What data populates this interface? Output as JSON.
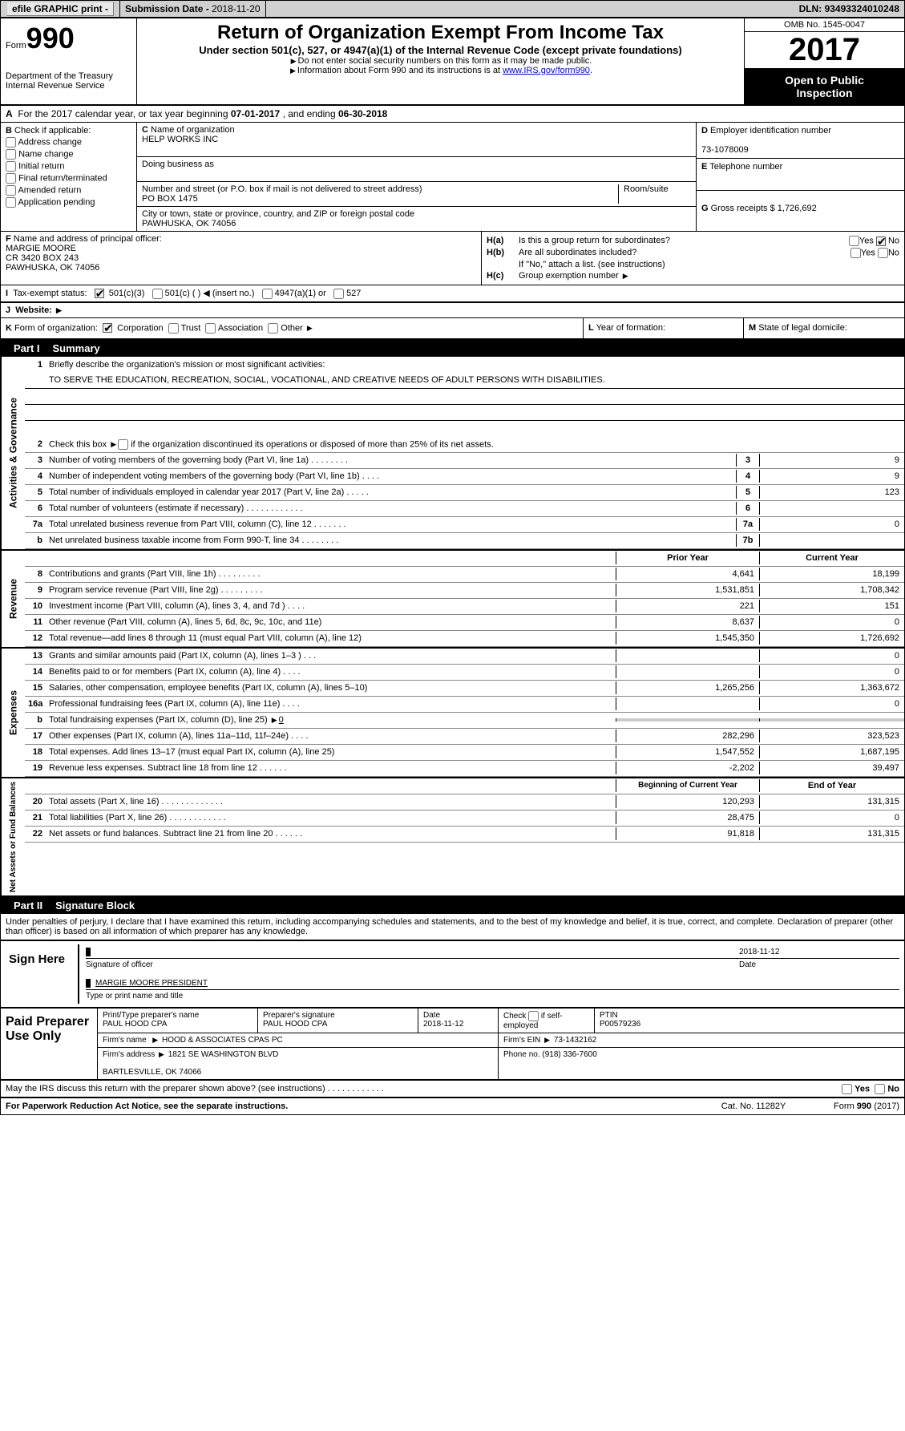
{
  "topbar": {
    "efile": "efile GRAPHIC print -",
    "submission_label": "Submission Date - ",
    "submission_date": "2018-11-20",
    "dln_label": "DLN: ",
    "dln": "93493324010248"
  },
  "header": {
    "form_label": "Form",
    "form_number": "990",
    "dept1": "Department of the Treasury",
    "dept2": "Internal Revenue Service",
    "title": "Return of Organization Exempt From Income Tax",
    "subtitle": "Under section 501(c), 527, or 4947(a)(1) of the Internal Revenue Code (except private foundations)",
    "note1": "Do not enter social security numbers on this form as it may be made public.",
    "note2_a": "Information about Form 990 and its instructions is at ",
    "note2_link": "www.IRS.gov/form990",
    "omb": "OMB No. 1545-0047",
    "year": "2017",
    "open1": "Open to Public",
    "open2": "Inspection"
  },
  "rowA": {
    "label_a": "A",
    "text": "For the 2017 calendar year, or tax year beginning ",
    "begin": "07-01-2017",
    "mid": " , and ending ",
    "end": "06-30-2018"
  },
  "boxB": {
    "label": "B",
    "check_label": "Check if applicable:",
    "items": [
      "Address change",
      "Name change",
      "Initial return",
      "Final return/terminated",
      "Amended return",
      "Application pending"
    ]
  },
  "boxC": {
    "label": "C",
    "name_label": "Name of organization",
    "name": "HELP WORKS INC",
    "dba_label": "Doing business as",
    "dba": "",
    "street_label": "Number and street (or P.O. box if mail is not delivered to street address)",
    "room_label": "Room/suite",
    "street": "PO BOX 1475",
    "city_label": "City or town, state or province, country, and ZIP or foreign postal code",
    "city": "PAWHUSKA, OK  74056"
  },
  "boxD": {
    "label": "D",
    "ein_label": "Employer identification number",
    "ein": "73-1078009",
    "e_label": "E",
    "tel_label": "Telephone number",
    "tel": "",
    "g_label": "G",
    "gross_label": "Gross receipts $ ",
    "gross": "1,726,692"
  },
  "boxF": {
    "label": "F",
    "officer_label": "Name and address of principal officer:",
    "name": "MARGIE MOORE",
    "addr1": "CR 3420 BOX 243",
    "addr2": "PAWHUSKA, OK  74056"
  },
  "boxH": {
    "ha_label": "H(a)",
    "ha_text": "Is this a group return for subordinates?",
    "ha_yes": "Yes",
    "ha_no": "No",
    "hb_label": "H(b)",
    "hb_text": "Are all subordinates included?",
    "hb_yes": "Yes",
    "hb_no": "No",
    "hb_note": "If \"No,\" attach a list. (see instructions)",
    "hc_label": "H(c)",
    "hc_text": "Group exemption number"
  },
  "rowI": {
    "label": "I",
    "text": "Tax-exempt status:",
    "o1": "501(c)(3)",
    "o2": "501(c) (  )",
    "o2b": "(insert no.)",
    "o3": "4947(a)(1) or",
    "o4": "527"
  },
  "rowJ": {
    "label": "J",
    "text": "Website:"
  },
  "rowK": {
    "label": "K",
    "text": "Form of organization:",
    "o1": "Corporation",
    "o2": "Trust",
    "o3": "Association",
    "o4": "Other"
  },
  "rowL": {
    "label": "L",
    "text": "Year of formation:"
  },
  "rowM": {
    "label": "M",
    "text": "State of legal domicile:"
  },
  "part1": {
    "header": "Part I",
    "title": "Summary",
    "vtabs": [
      "Activities & Governance",
      "Revenue",
      "Expenses",
      "Net Assets or Fund Balances"
    ],
    "line1_num": "1",
    "line1_text": "Briefly describe the organization's mission or most significant activities:",
    "line1_val": "TO SERVE THE EDUCATION, RECREATION, SOCIAL, VOCATIONAL, AND CREATIVE NEEDS OF ADULT PERSONS WITH DISABILITIES.",
    "line2_num": "2",
    "line2_text": "Check this box",
    "line2_text2": " if the organization discontinued its operations or disposed of more than 25% of its net assets.",
    "lines_ag": [
      {
        "n": "3",
        "t": "Number of voting members of the governing body (Part VI, line 1a)  .    .    .    .    .    .    .    .",
        "c": "3",
        "v": "9"
      },
      {
        "n": "4",
        "t": "Number of independent voting members of the governing body (Part VI, line 1b)    .   .    .    .",
        "c": "4",
        "v": "9"
      },
      {
        "n": "5",
        "t": "Total number of individuals employed in calendar year 2017 (Part V, line 2a)    .    .    .    .    .",
        "c": "5",
        "v": "123"
      },
      {
        "n": "6",
        "t": "Total number of volunteers (estimate if necessary)   .    .    .    .    .    .    .    .    .    .    .    .",
        "c": "6",
        "v": ""
      },
      {
        "n": "7a",
        "t": "Total unrelated business revenue from Part VIII, column (C), line 12    .    .    .    .    .    .    .",
        "c": "7a",
        "v": "0"
      },
      {
        "n": "b",
        "t": "Net unrelated business taxable income from Form 990-T, line 34   .    .    .    .    .    .    .    .",
        "c": "7b",
        "v": ""
      }
    ],
    "col_hdr_prior": "Prior Year",
    "col_hdr_current": "Current Year",
    "lines_rev": [
      {
        "n": "8",
        "t": "Contributions and grants (Part VIII, line 1h)   .    .    .    .    .    .    .    .    .",
        "a": "4,641",
        "b": "18,199"
      },
      {
        "n": "9",
        "t": "Program service revenue (Part VIII, line 2g)   .    .    .    .    .    .    .    .    .",
        "a": "1,531,851",
        "b": "1,708,342"
      },
      {
        "n": "10",
        "t": "Investment income (Part VIII, column (A), lines 3, 4, and 7d )    .    .    .    .",
        "a": "221",
        "b": "151"
      },
      {
        "n": "11",
        "t": "Other revenue (Part VIII, column (A), lines 5, 6d, 8c, 9c, 10c, and 11e)",
        "a": "8,637",
        "b": "0"
      },
      {
        "n": "12",
        "t": "Total revenue—add lines 8 through 11 (must equal Part VIII, column (A), line 12)",
        "a": "1,545,350",
        "b": "1,726,692"
      }
    ],
    "lines_exp": [
      {
        "n": "13",
        "t": "Grants and similar amounts paid (Part IX, column (A), lines 1–3 )   .    .    .",
        "a": "",
        "b": "0"
      },
      {
        "n": "14",
        "t": "Benefits paid to or for members (Part IX, column (A), line 4)   .    .    .    .",
        "a": "",
        "b": "0"
      },
      {
        "n": "15",
        "t": "Salaries, other compensation, employee benefits (Part IX, column (A), lines 5–10)",
        "a": "1,265,256",
        "b": "1,363,672"
      },
      {
        "n": "16a",
        "t": "Professional fundraising fees (Part IX, column (A), line 11e)    .    .    .    .",
        "a": "",
        "b": "0"
      },
      {
        "n": "b",
        "t": "Total fundraising expenses (Part IX, column (D), line 25)",
        "bval": "0",
        "gray": true
      },
      {
        "n": "17",
        "t": "Other expenses (Part IX, column (A), lines 11a–11d, 11f–24e)    .    .    .    .",
        "a": "282,296",
        "b": "323,523"
      },
      {
        "n": "18",
        "t": "Total expenses. Add lines 13–17 (must equal Part IX, column (A), line 25)",
        "a": "1,547,552",
        "b": "1,687,195"
      },
      {
        "n": "19",
        "t": "Revenue less expenses. Subtract line 18 from line 12   .    .    .    .    .    .",
        "a": "-2,202",
        "b": "39,497"
      }
    ],
    "col_hdr_begin": "Beginning of Current Year",
    "col_hdr_end": "End of Year",
    "lines_na": [
      {
        "n": "20",
        "t": "Total assets (Part X, line 16)   .    .    .    .    .    .    .    .    .    .    .    .    .",
        "a": "120,293",
        "b": "131,315"
      },
      {
        "n": "21",
        "t": "Total liabilities (Part X, line 26)    .    .    .    .    .    .    .    .    .    .    .    .",
        "a": "28,475",
        "b": "0"
      },
      {
        "n": "22",
        "t": "Net assets or fund balances. Subtract line 21 from line 20 .    .    .    .    .    .",
        "a": "91,818",
        "b": "131,315"
      }
    ]
  },
  "part2": {
    "header": "Part II",
    "title": "Signature Block",
    "perjury": "Under penalties of perjury, I declare that I have examined this return, including accompanying schedules and statements, and to the best of my knowledge and belief, it is true, correct, and complete. Declaration of preparer (other than officer) is based on all information of which preparer has any knowledge.",
    "sign_here": "Sign Here",
    "sig_date": "2018-11-12",
    "sig_label": "Signature of officer",
    "date_label": "Date",
    "name_title": "MARGIE MOORE PRESIDENT",
    "name_label": "Type or print name and title",
    "paid": "Paid Preparer Use Only",
    "prep_name_label": "Print/Type preparer's name",
    "prep_name": "PAUL HOOD CPA",
    "prep_sig_label": "Preparer's signature",
    "prep_sig": "PAUL HOOD CPA",
    "prep_date_label": "Date",
    "prep_date": "2018-11-12",
    "self_emp": "Check",
    "self_emp2": "if self-employed",
    "ptin_label": "PTIN",
    "ptin": "P00579236",
    "firm_name_label": "Firm's name",
    "firm_name": "HOOD & ASSOCIATES CPAS PC",
    "firm_ein_label": "Firm's EIN",
    "firm_ein": "73-1432162",
    "firm_addr_label": "Firm's address",
    "firm_addr1": "1821 SE WASHINGTON BLVD",
    "firm_addr2": "BARTLESVILLE, OK  74066",
    "phone_label": "Phone no.",
    "phone": "(918) 336-7600",
    "discuss": "May the IRS discuss this return with the preparer shown above? (see instructions)    .    .    .    .    .    .    .    .    .    .    .    .",
    "yes": "Yes",
    "no": "No"
  },
  "footer": {
    "left": "For Paperwork Reduction Act Notice, see the separate instructions.",
    "center": "Cat. No. 11282Y",
    "right_a": "Form ",
    "right_b": "990",
    "right_c": " (2017)"
  }
}
